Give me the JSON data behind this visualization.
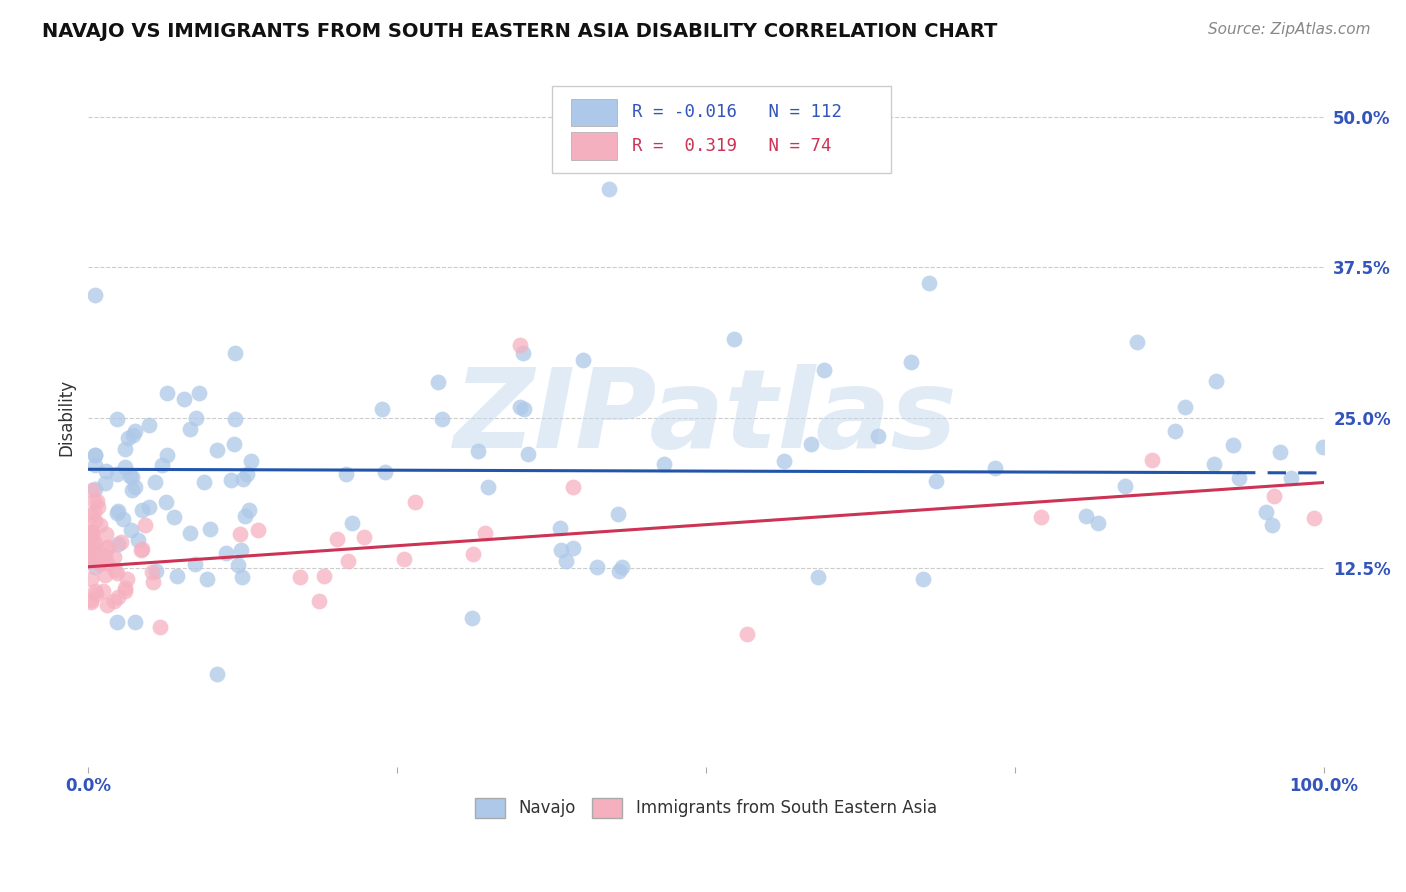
{
  "title": "NAVAJO VS IMMIGRANTS FROM SOUTH EASTERN ASIA DISABILITY CORRELATION CHART",
  "source": "Source: ZipAtlas.com",
  "ylabel": "Disability",
  "xlim": [
    0,
    1.0
  ],
  "ylim": [
    -0.04,
    0.54
  ],
  "ytick_positions": [
    0.125,
    0.25,
    0.375,
    0.5
  ],
  "ytick_labels": [
    "12.5%",
    "25.0%",
    "37.5%",
    "50.0%"
  ],
  "navajo_R": -0.016,
  "navajo_N": 112,
  "immigrant_R": 0.319,
  "immigrant_N": 74,
  "navajo_color": "#adc8e8",
  "navajo_line_color": "#2255aa",
  "immigrant_color": "#f5b0c0",
  "immigrant_line_color": "#cc3355",
  "watermark": "ZIPatlas",
  "grid_color": "#cccccc",
  "background_color": "#ffffff",
  "title_color": "#111111",
  "source_color": "#888888",
  "axis_color": "#3355bb",
  "ylabel_color": "#333333"
}
